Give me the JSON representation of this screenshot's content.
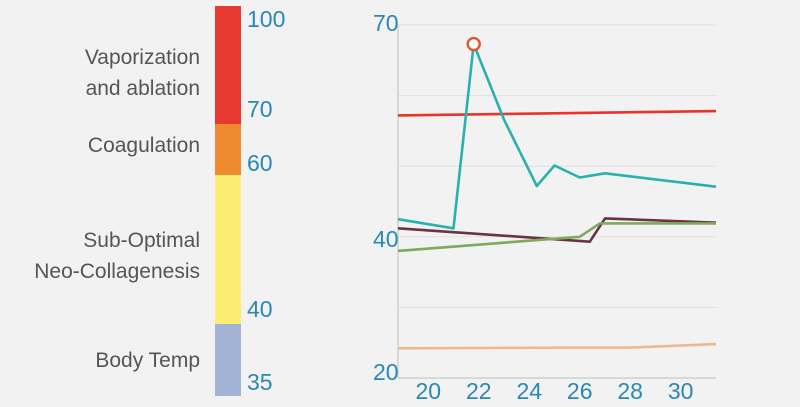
{
  "temperature_scale": {
    "zones": [
      {
        "label_lines": [
          "Vaporization",
          "and ablation"
        ],
        "color": "#e63a30"
      },
      {
        "label_lines": [
          "Coagulation"
        ],
        "color": "#ee8a2f"
      },
      {
        "label_lines": [
          "Sub-Optimal",
          "Neo-Collagenesis"
        ],
        "color": "#fcec72"
      },
      {
        "label_lines": [
          "Body Temp"
        ],
        "color": "#a3b3d6"
      }
    ],
    "values": [
      "100",
      "70",
      "60",
      "40",
      "35"
    ]
  },
  "chart_data": {
    "type": "line",
    "title": "",
    "xlabel": "",
    "ylabel": "",
    "xlim": [
      18.8,
      31.4
    ],
    "ylim": [
      20,
      70
    ],
    "x_ticks": [
      20,
      22,
      24,
      26,
      28,
      30
    ],
    "y_ticks": [
      20,
      40,
      70
    ],
    "grid": true,
    "series": [
      {
        "color": "#e8342b",
        "points": [
          [
            18.8,
            57.2
          ],
          [
            31.4,
            57.8
          ]
        ]
      },
      {
        "color": "#2ab0ad",
        "points": [
          [
            18.8,
            42.5
          ],
          [
            21.0,
            41.2
          ],
          [
            21.8,
            67.3
          ],
          [
            23.0,
            56.6
          ],
          [
            24.3,
            47.2
          ],
          [
            25.0,
            50.1
          ],
          [
            26.0,
            48.4
          ],
          [
            27.0,
            49.0
          ],
          [
            31.4,
            47.1
          ]
        ]
      },
      {
        "color": "#6a3346",
        "points": [
          [
            18.8,
            41.2
          ],
          [
            26.4,
            39.3
          ],
          [
            27.0,
            42.6
          ],
          [
            31.4,
            42.0
          ]
        ]
      },
      {
        "color": "#7eaa5c",
        "points": [
          [
            18.8,
            38.0
          ],
          [
            26.0,
            40.0
          ],
          [
            26.8,
            41.9
          ],
          [
            31.4,
            41.9
          ]
        ]
      },
      {
        "color": "#f0b88a",
        "points": [
          [
            18.8,
            24.2
          ],
          [
            26.0,
            24.3
          ],
          [
            28.0,
            24.3
          ],
          [
            31.4,
            24.8
          ]
        ]
      }
    ],
    "annotations": [
      {
        "type": "open-circle-marker",
        "x": 21.8,
        "y": 67.3,
        "color": "#e5552a"
      }
    ]
  }
}
